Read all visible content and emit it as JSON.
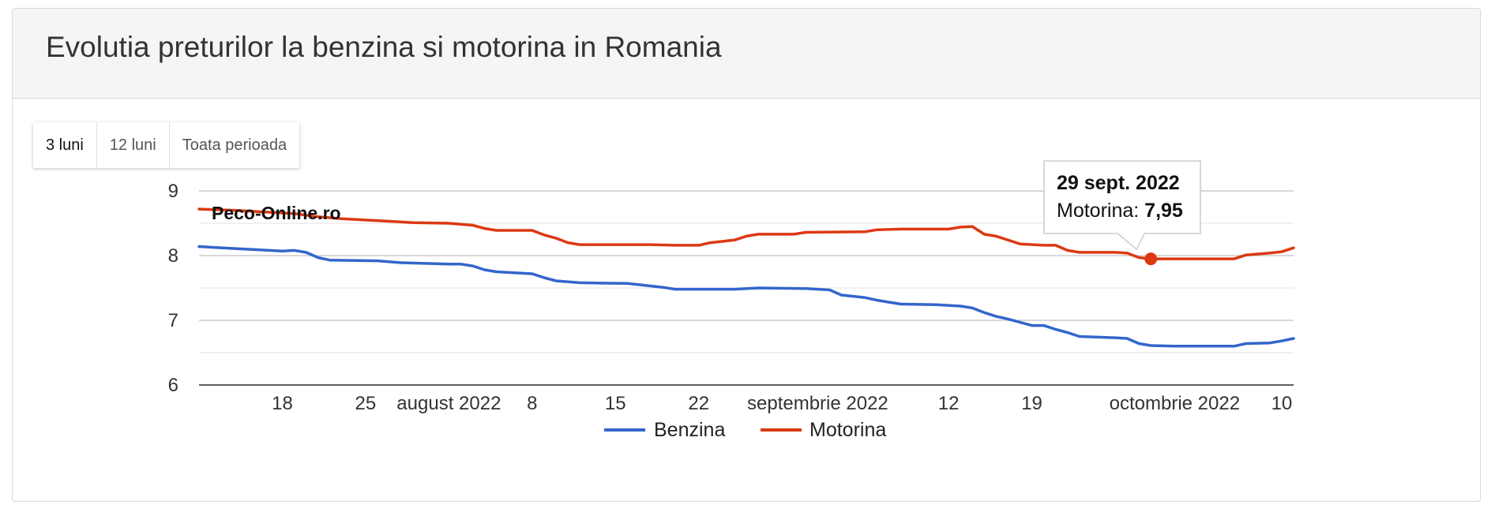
{
  "title": "Evolutia preturilor la benzina si motorina in Romania",
  "ranges": [
    {
      "label": "3 luni",
      "active": true
    },
    {
      "label": "12 luni",
      "active": false
    },
    {
      "label": "Toata perioada",
      "active": false
    }
  ],
  "watermark": "Peco-Online.ro",
  "tooltip": {
    "date": "29 sept. 2022",
    "series": "Motorina",
    "value": "7,95",
    "x": "2022-09-29"
  },
  "colors": {
    "benzina": "#3366cc",
    "motorina": "#dc3912",
    "grid": "#cccccc",
    "text": "#333333"
  },
  "chart_data": {
    "type": "line",
    "xlim": [
      "2022-07-11",
      "2022-10-11"
    ],
    "ylim": [
      6,
      9
    ],
    "yticks": [
      6,
      7,
      8,
      9
    ],
    "grid": true,
    "legend_position": "bottom",
    "xticks": [
      {
        "date": "2022-07-18",
        "label": "18"
      },
      {
        "date": "2022-07-25",
        "label": "25"
      },
      {
        "date": "2022-08-01",
        "label": "august 2022"
      },
      {
        "date": "2022-08-08",
        "label": "8"
      },
      {
        "date": "2022-08-15",
        "label": "15"
      },
      {
        "date": "2022-08-22",
        "label": "22"
      },
      {
        "date": "2022-09-01",
        "label": "septembrie 2022"
      },
      {
        "date": "2022-09-12",
        "label": "12"
      },
      {
        "date": "2022-09-19",
        "label": "19"
      },
      {
        "date": "2022-10-01",
        "label": "octombrie 2022"
      },
      {
        "date": "2022-10-10",
        "label": "10"
      }
    ],
    "series": [
      {
        "name": "Benzina",
        "color": "#3366cc",
        "points": [
          [
            "2022-07-11",
            8.14
          ],
          [
            "2022-07-13",
            8.12
          ],
          [
            "2022-07-16",
            8.09
          ],
          [
            "2022-07-18",
            8.07
          ],
          [
            "2022-07-19",
            8.08
          ],
          [
            "2022-07-20",
            8.05
          ],
          [
            "2022-07-21",
            7.97
          ],
          [
            "2022-07-22",
            7.93
          ],
          [
            "2022-07-26",
            7.92
          ],
          [
            "2022-07-28",
            7.89
          ],
          [
            "2022-08-01",
            7.87
          ],
          [
            "2022-08-02",
            7.87
          ],
          [
            "2022-08-03",
            7.84
          ],
          [
            "2022-08-04",
            7.78
          ],
          [
            "2022-08-05",
            7.75
          ],
          [
            "2022-08-08",
            7.72
          ],
          [
            "2022-08-09",
            7.66
          ],
          [
            "2022-08-10",
            7.61
          ],
          [
            "2022-08-12",
            7.58
          ],
          [
            "2022-08-16",
            7.57
          ],
          [
            "2022-08-17",
            7.55
          ],
          [
            "2022-08-19",
            7.51
          ],
          [
            "2022-08-20",
            7.48
          ],
          [
            "2022-08-25",
            7.48
          ],
          [
            "2022-08-27",
            7.5
          ],
          [
            "2022-08-31",
            7.49
          ],
          [
            "2022-09-02",
            7.47
          ],
          [
            "2022-09-03",
            7.39
          ],
          [
            "2022-09-05",
            7.35
          ],
          [
            "2022-09-06",
            7.31
          ],
          [
            "2022-09-08",
            7.25
          ],
          [
            "2022-09-11",
            7.24
          ],
          [
            "2022-09-13",
            7.22
          ],
          [
            "2022-09-14",
            7.19
          ],
          [
            "2022-09-15",
            7.12
          ],
          [
            "2022-09-16",
            7.06
          ],
          [
            "2022-09-17",
            7.02
          ],
          [
            "2022-09-19",
            6.92
          ],
          [
            "2022-09-20",
            6.92
          ],
          [
            "2022-09-21",
            6.86
          ],
          [
            "2022-09-22",
            6.81
          ],
          [
            "2022-09-23",
            6.75
          ],
          [
            "2022-09-26",
            6.73
          ],
          [
            "2022-09-27",
            6.72
          ],
          [
            "2022-09-28",
            6.64
          ],
          [
            "2022-09-29",
            6.61
          ],
          [
            "2022-10-01",
            6.6
          ],
          [
            "2022-10-06",
            6.6
          ],
          [
            "2022-10-07",
            6.64
          ],
          [
            "2022-10-09",
            6.65
          ],
          [
            "2022-10-10",
            6.68
          ],
          [
            "2022-10-11",
            6.72
          ]
        ]
      },
      {
        "name": "Motorina",
        "color": "#dc3912",
        "points": [
          [
            "2022-07-11",
            8.72
          ],
          [
            "2022-07-14",
            8.7
          ],
          [
            "2022-07-17",
            8.67
          ],
          [
            "2022-07-19",
            8.65
          ],
          [
            "2022-07-21",
            8.6
          ],
          [
            "2022-07-23",
            8.57
          ],
          [
            "2022-07-25",
            8.55
          ],
          [
            "2022-07-27",
            8.53
          ],
          [
            "2022-07-29",
            8.51
          ],
          [
            "2022-08-01",
            8.5
          ],
          [
            "2022-08-03",
            8.47
          ],
          [
            "2022-08-04",
            8.42
          ],
          [
            "2022-08-05",
            8.39
          ],
          [
            "2022-08-08",
            8.39
          ],
          [
            "2022-08-09",
            8.32
          ],
          [
            "2022-08-10",
            8.27
          ],
          [
            "2022-08-11",
            8.2
          ],
          [
            "2022-08-12",
            8.17
          ],
          [
            "2022-08-18",
            8.17
          ],
          [
            "2022-08-20",
            8.16
          ],
          [
            "2022-08-22",
            8.16
          ],
          [
            "2022-08-23",
            8.2
          ],
          [
            "2022-08-25",
            8.24
          ],
          [
            "2022-08-26",
            8.3
          ],
          [
            "2022-08-27",
            8.33
          ],
          [
            "2022-08-30",
            8.33
          ],
          [
            "2022-08-31",
            8.36
          ],
          [
            "2022-09-05",
            8.37
          ],
          [
            "2022-09-06",
            8.4
          ],
          [
            "2022-09-08",
            8.41
          ],
          [
            "2022-09-12",
            8.41
          ],
          [
            "2022-09-13",
            8.44
          ],
          [
            "2022-09-14",
            8.45
          ],
          [
            "2022-09-15",
            8.33
          ],
          [
            "2022-09-16",
            8.3
          ],
          [
            "2022-09-18",
            8.18
          ],
          [
            "2022-09-20",
            8.16
          ],
          [
            "2022-09-21",
            8.16
          ],
          [
            "2022-09-22",
            8.08
          ],
          [
            "2022-09-23",
            8.05
          ],
          [
            "2022-09-26",
            8.05
          ],
          [
            "2022-09-27",
            8.04
          ],
          [
            "2022-09-28",
            7.97
          ],
          [
            "2022-09-29",
            7.95
          ],
          [
            "2022-10-06",
            7.95
          ],
          [
            "2022-10-07",
            8.01
          ],
          [
            "2022-10-09",
            8.04
          ],
          [
            "2022-10-10",
            8.06
          ],
          [
            "2022-10-11",
            8.12
          ]
        ]
      }
    ]
  }
}
